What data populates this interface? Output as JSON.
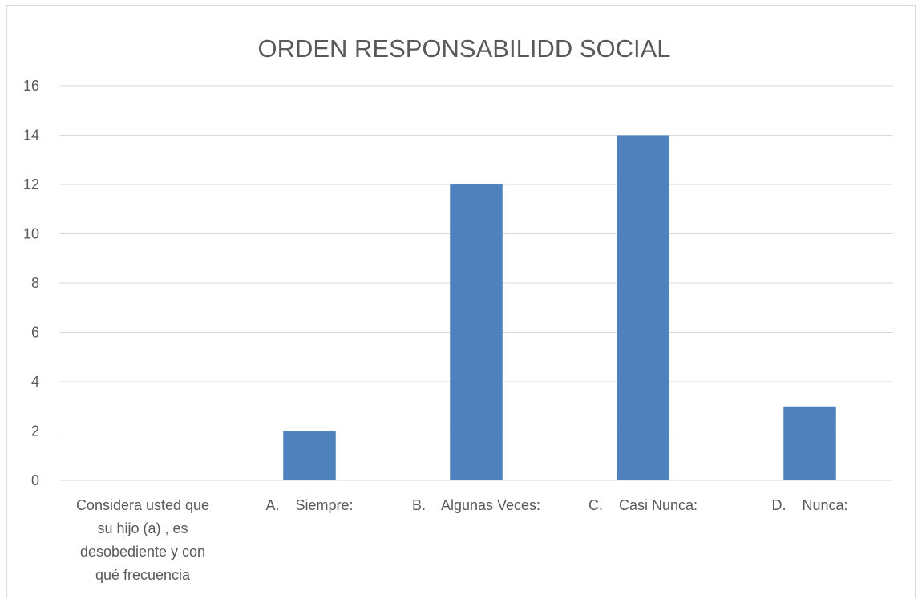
{
  "chart_data": {
    "type": "bar",
    "title": "ORDEN RESPONSABILIDD SOCIAL",
    "categories": [
      [
        "Considera usted que",
        "su hijo (a) , es",
        "desobediente y con",
        "qué frecuencia"
      ],
      [
        "A.    Siempre:"
      ],
      [
        "B.    Algunas Veces:"
      ],
      [
        "C.    Casi Nunca:"
      ],
      [
        "D.    Nunca:"
      ]
    ],
    "values": [
      0,
      2,
      12,
      14,
      3
    ],
    "ylim": [
      0,
      16
    ],
    "yticks": [
      "0",
      "2",
      "4",
      "6",
      "8",
      "10",
      "12",
      "14",
      "16"
    ],
    "grid": true,
    "legend": "none",
    "bar_color": "#4f81bd"
  }
}
